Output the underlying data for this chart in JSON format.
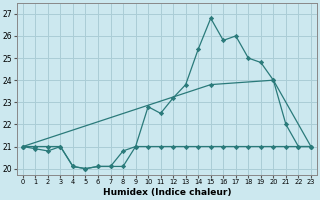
{
  "xlabel": "Humidex (Indice chaleur)",
  "background_color": "#cce8ef",
  "grid_color": "#aacdd6",
  "line_color": "#2a7a7a",
  "xlim": [
    -0.5,
    23.5
  ],
  "ylim": [
    19.7,
    27.5
  ],
  "yticks": [
    20,
    21,
    22,
    23,
    24,
    25,
    26,
    27
  ],
  "xticks": [
    0,
    1,
    2,
    3,
    4,
    5,
    6,
    7,
    8,
    9,
    10,
    11,
    12,
    13,
    14,
    15,
    16,
    17,
    18,
    19,
    20,
    21,
    22,
    23
  ],
  "series": [
    {
      "x": [
        0,
        1,
        2,
        3,
        4,
        5,
        6,
        7,
        8,
        9,
        10,
        11,
        12,
        13,
        14,
        15,
        16,
        17,
        18,
        19,
        20,
        21,
        22,
        23
      ],
      "y": [
        21.0,
        21.0,
        21.0,
        21.0,
        20.1,
        20.0,
        20.1,
        20.1,
        20.1,
        21.0,
        21.0,
        21.0,
        21.0,
        21.0,
        21.0,
        21.0,
        21.0,
        21.0,
        21.0,
        21.0,
        21.0,
        21.0,
        21.0,
        21.0
      ]
    },
    {
      "x": [
        0,
        1,
        2,
        3,
        4,
        5,
        6,
        7,
        8,
        9,
        10,
        11,
        12,
        13,
        14,
        15,
        16,
        17,
        18,
        19,
        20,
        21,
        22,
        23
      ],
      "y": [
        21.0,
        20.9,
        20.8,
        21.0,
        20.1,
        20.0,
        20.1,
        20.1,
        20.8,
        21.0,
        22.8,
        22.5,
        23.2,
        23.8,
        25.4,
        26.8,
        25.8,
        26.0,
        25.0,
        24.8,
        24.0,
        22.0,
        21.0,
        21.0
      ]
    },
    {
      "x": [
        0,
        15,
        20,
        23
      ],
      "y": [
        21.0,
        23.8,
        24.0,
        21.0
      ]
    }
  ]
}
